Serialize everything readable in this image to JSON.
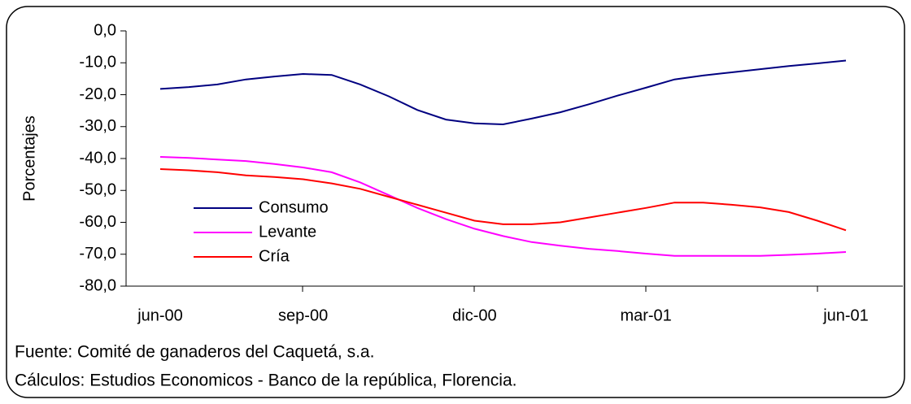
{
  "chart_data": {
    "type": "line",
    "y_label": "Porcentajes",
    "categories": [
      "jun-00",
      null,
      null,
      null,
      null,
      "sep-00",
      null,
      null,
      null,
      null,
      null,
      "dic-00",
      null,
      null,
      null,
      null,
      null,
      "mar-01",
      null,
      null,
      null,
      null,
      null,
      null,
      "jun-01"
    ],
    "series": [
      {
        "name": "Consumo",
        "color": "#000080",
        "values": [
          -18.2,
          -17.6,
          -16.8,
          -15.2,
          -14.3,
          -13.5,
          -13.8,
          -16.8,
          -20.5,
          -24.8,
          -27.8,
          -29.0,
          -29.3,
          -27.5,
          -25.5,
          -23.0,
          -20.3,
          -17.8,
          -15.2,
          -14.0,
          -13.0,
          -12.0,
          -11.0,
          -10.2,
          -9.3
        ]
      },
      {
        "name": "Levante",
        "color": "#ff00ff",
        "values": [
          -39.5,
          -39.8,
          -40.3,
          -40.8,
          -41.7,
          -42.8,
          -44.3,
          -47.5,
          -51.5,
          -55.5,
          -59.0,
          -62.0,
          -64.3,
          -66.2,
          -67.3,
          -68.3,
          -69.0,
          -69.8,
          -70.5,
          -70.5,
          -70.5,
          -70.5,
          -70.2,
          -69.8,
          -69.3
        ]
      },
      {
        "name": "Cría",
        "color": "#ff0000",
        "values": [
          -43.3,
          -43.7,
          -44.3,
          -45.3,
          -45.8,
          -46.5,
          -47.8,
          -49.5,
          -52.0,
          -54.5,
          -57.0,
          -59.5,
          -60.6,
          -60.6,
          -60.0,
          -58.5,
          -57.0,
          -55.5,
          -53.8,
          -53.8,
          -54.5,
          -55.3,
          -56.8,
          -59.5,
          -62.5
        ]
      }
    ],
    "ylim": [
      -80,
      0
    ],
    "yticks": [
      {
        "value": 0,
        "label": "0,0"
      },
      {
        "value": -10,
        "label": "-10,0"
      },
      {
        "value": -20,
        "label": "-20,0"
      },
      {
        "value": -30,
        "label": "-30,0"
      },
      {
        "value": -40,
        "label": "-40,0"
      },
      {
        "value": -50,
        "label": "-50,0"
      },
      {
        "value": -60,
        "label": "-60,0"
      },
      {
        "value": -70,
        "label": "-70,0"
      },
      {
        "value": -80,
        "label": "-80,0"
      }
    ],
    "grid": false,
    "notes": [
      "Fuente: Comité de ganaderos del Caquetá, s.a.",
      "Cálculos: Estudios Economicos - Banco de la república, Florencia."
    ]
  }
}
